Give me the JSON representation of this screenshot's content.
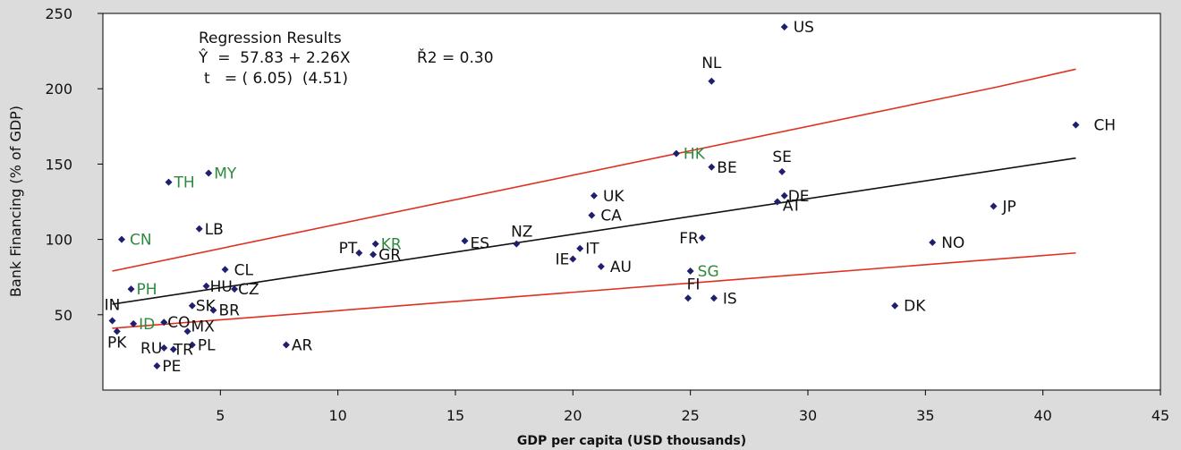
{
  "chart_data": {
    "type": "scatter",
    "xlabel": "GDP per capita (USD thousands)",
    "ylabel": "Bank Financing (% of GDP)",
    "xlim": [
      0,
      45
    ],
    "ylim": [
      0,
      250
    ],
    "x_ticks": [
      5,
      10,
      15,
      20,
      25,
      30,
      35,
      40,
      45
    ],
    "y_ticks": [
      50,
      100,
      150,
      200,
      250
    ],
    "grid": false,
    "legend": "none",
    "colors": {
      "marker": "#1f1f6e",
      "highlight_label": "#2e8b3e",
      "label": "#111111",
      "fit_line": "#111111",
      "band_line": "#e03020"
    },
    "annotation": {
      "line1": "Regression Results",
      "line2": "Ŷ  =  57.83 + 2.26X",
      "line2b": "Ř2 = 0.30",
      "line3": "t   = ( 6.05)  (4.51)"
    },
    "fit_line": {
      "x": [
        0.4,
        41.4
      ],
      "y": [
        57,
        154
      ]
    },
    "upper_band": {
      "x": [
        0.4,
        38.0,
        41.4
      ],
      "y": [
        79,
        201,
        213
      ]
    },
    "lower_band": {
      "x": [
        0.4,
        41.4
      ],
      "y": [
        41,
        91
      ]
    },
    "points": [
      {
        "label": "US",
        "x": 29.0,
        "y": 241,
        "highlight": false
      },
      {
        "label": "NL",
        "x": 25.9,
        "y": 205,
        "highlight": false
      },
      {
        "label": "CH",
        "x": 41.4,
        "y": 176,
        "highlight": false
      },
      {
        "label": "HK",
        "x": 24.4,
        "y": 157,
        "highlight": true
      },
      {
        "label": "BE",
        "x": 25.9,
        "y": 148,
        "highlight": false
      },
      {
        "label": "SE",
        "x": 28.9,
        "y": 145,
        "highlight": false
      },
      {
        "label": "MY",
        "x": 4.5,
        "y": 144,
        "highlight": true
      },
      {
        "label": "TH",
        "x": 2.8,
        "y": 138,
        "highlight": true
      },
      {
        "label": "UK",
        "x": 20.9,
        "y": 129,
        "highlight": false
      },
      {
        "label": "DE",
        "x": 29.0,
        "y": 129,
        "highlight": false
      },
      {
        "label": "AT",
        "x": 28.7,
        "y": 125,
        "highlight": false
      },
      {
        "label": "JP",
        "x": 37.9,
        "y": 122,
        "highlight": false
      },
      {
        "label": "CA",
        "x": 20.8,
        "y": 116,
        "highlight": false
      },
      {
        "label": "LB",
        "x": 4.1,
        "y": 107,
        "highlight": false
      },
      {
        "label": "FR",
        "x": 25.5,
        "y": 101,
        "highlight": false
      },
      {
        "label": "CN",
        "x": 0.8,
        "y": 100,
        "highlight": true
      },
      {
        "label": "ES",
        "x": 15.4,
        "y": 99,
        "highlight": false
      },
      {
        "label": "NO",
        "x": 35.3,
        "y": 98,
        "highlight": false
      },
      {
        "label": "KR",
        "x": 11.6,
        "y": 97,
        "highlight": true
      },
      {
        "label": "NZ",
        "x": 17.6,
        "y": 97,
        "highlight": false
      },
      {
        "label": "IT",
        "x": 20.3,
        "y": 94,
        "highlight": false
      },
      {
        "label": "PT",
        "x": 10.9,
        "y": 91,
        "highlight": false
      },
      {
        "label": "GR",
        "x": 11.5,
        "y": 90,
        "highlight": false
      },
      {
        "label": "IE",
        "x": 20.0,
        "y": 87,
        "highlight": false
      },
      {
        "label": "AU",
        "x": 21.2,
        "y": 82,
        "highlight": false
      },
      {
        "label": "CL",
        "x": 5.2,
        "y": 80,
        "highlight": false
      },
      {
        "label": "SG",
        "x": 25.0,
        "y": 79,
        "highlight": true
      },
      {
        "label": "HU",
        "x": 4.4,
        "y": 69,
        "highlight": false
      },
      {
        "label": "CZ",
        "x": 5.6,
        "y": 67,
        "highlight": false
      },
      {
        "label": "PH",
        "x": 1.2,
        "y": 67,
        "highlight": true
      },
      {
        "label": "FI",
        "x": 24.9,
        "y": 61,
        "highlight": false
      },
      {
        "label": "IS",
        "x": 26.0,
        "y": 61,
        "highlight": false
      },
      {
        "label": "DK",
        "x": 33.7,
        "y": 56,
        "highlight": false
      },
      {
        "label": "SK",
        "x": 3.8,
        "y": 56,
        "highlight": false
      },
      {
        "label": "BR",
        "x": 4.7,
        "y": 53,
        "highlight": false
      },
      {
        "label": "IN",
        "x": 0.4,
        "y": 46,
        "highlight": false
      },
      {
        "label": "CO",
        "x": 2.6,
        "y": 45,
        "highlight": false
      },
      {
        "label": "ID",
        "x": 1.3,
        "y": 44,
        "highlight": true
      },
      {
        "label": "MX",
        "x": 3.6,
        "y": 39,
        "highlight": false
      },
      {
        "label": "PK",
        "x": 0.6,
        "y": 39,
        "highlight": false
      },
      {
        "label": "PL",
        "x": 3.8,
        "y": 30,
        "highlight": false
      },
      {
        "label": "AR",
        "x": 7.8,
        "y": 30,
        "highlight": false
      },
      {
        "label": "RU",
        "x": 2.6,
        "y": 28,
        "highlight": false
      },
      {
        "label": "TR",
        "x": 3.0,
        "y": 27,
        "highlight": false
      },
      {
        "label": "PE",
        "x": 2.3,
        "y": 16,
        "highlight": false
      }
    ]
  }
}
